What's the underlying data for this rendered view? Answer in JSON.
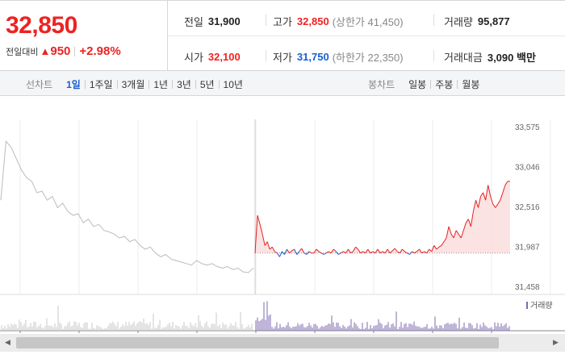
{
  "summary": {
    "price": "32,850",
    "change_label": "전일대비",
    "change_icon": "up-triangle-icon",
    "change_amount": "950",
    "change_percent": "+2.98%",
    "prev_close": {
      "label": "전일",
      "value": "31,900"
    },
    "high": {
      "label": "고가",
      "value": "32,850",
      "sub": "(상한가 41,450)"
    },
    "volume": {
      "label": "거래량",
      "value": "95,877"
    },
    "open": {
      "label": "시가",
      "value": "32,100"
    },
    "low": {
      "label": "저가",
      "value": "31,750",
      "sub": "(하한가 22,350)"
    },
    "amount": {
      "label": "거래대금",
      "value": "3,090 백만"
    }
  },
  "toolbar": {
    "line_chart_label": "선차트",
    "periods": [
      "1일",
      "1주일",
      "3개월",
      "1년",
      "3년",
      "5년",
      "10년"
    ],
    "active_period": "1일",
    "candle_chart_label": "봉차트",
    "candle_periods": [
      "일봉",
      "주봉",
      "월봉"
    ]
  },
  "colors": {
    "up": "#e22222",
    "down": "#1a5fd0",
    "prev_day": "#bbbbbb",
    "volume_today": "#7d6bb0"
  },
  "chart_data": {
    "type": "line",
    "y_ticks": [
      "33,575",
      "33,046",
      "32,516",
      "31,987",
      "31,458"
    ],
    "ylim": [
      31458,
      33575
    ],
    "baseline": 31900,
    "volume_legend": "거래량",
    "series": [
      {
        "values": [
          32600,
          33380,
          33300,
          33150,
          33000,
          32900,
          32850,
          32700,
          32720,
          32600,
          32650,
          32500,
          32560,
          32450,
          32400,
          32420,
          32300,
          32350,
          32250,
          32280,
          32200,
          32180,
          32150,
          32100,
          32120,
          32050,
          32080,
          32000,
          31950,
          31980,
          31900,
          31850,
          31880,
          31820,
          31800,
          31780,
          31760,
          31740,
          31800,
          31760,
          31740,
          31760,
          31720,
          31700,
          31720,
          31680,
          31700,
          31650,
          31640,
          31700
        ]
      },
      {
        "values": [
          31900,
          32400,
          32280,
          32150,
          32000,
          32050,
          31950,
          31980,
          31920,
          31900,
          31850,
          31920,
          31880,
          31950,
          31900,
          31930,
          31950,
          31880,
          31920,
          31960,
          31900,
          31880,
          31920,
          31900,
          31900,
          31950,
          31920,
          31900,
          31880,
          31900,
          31920,
          31900,
          31950,
          31920,
          31880,
          31900,
          31920,
          31900,
          31950,
          31900,
          31920,
          31980,
          31950,
          31900,
          31920,
          31900,
          31950,
          31900,
          31920,
          31900,
          31950,
          31900,
          31920,
          31900,
          31950,
          31900,
          31930,
          31960,
          31920,
          31900,
          31950,
          31920,
          31900,
          31880,
          31920,
          31900,
          31920,
          31950,
          31900,
          31920,
          31900,
          31950,
          31920,
          32000,
          31950,
          31980,
          32000,
          32050,
          32100,
          32250,
          32150,
          32100,
          32200,
          32150,
          32100,
          32200,
          32300,
          32350,
          32250,
          32450,
          32600,
          32500,
          32650,
          32700,
          32600,
          32800,
          32650,
          32550,
          32500,
          32550,
          32600,
          32700,
          32800,
          32850,
          32850
        ]
      }
    ]
  }
}
